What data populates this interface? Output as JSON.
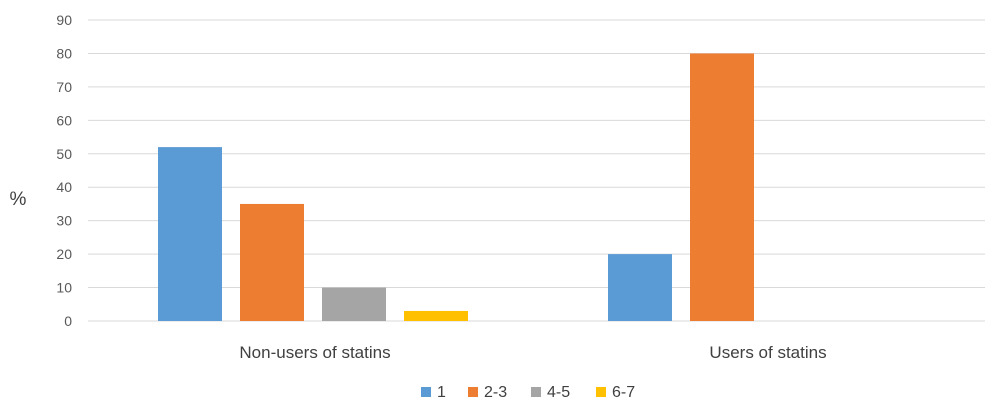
{
  "chart_data": {
    "type": "bar",
    "categories": [
      "Non-users of statins",
      "Users of statins"
    ],
    "series": [
      {
        "name": "1",
        "color": "#5B9BD5",
        "values": [
          52,
          20
        ]
      },
      {
        "name": "2-3",
        "color": "#ED7D31",
        "values": [
          35,
          80
        ]
      },
      {
        "name": "4-5",
        "color": "#A5A5A5",
        "values": [
          10,
          0
        ]
      },
      {
        "name": "6-7",
        "color": "#FFC000",
        "values": [
          3,
          0
        ]
      }
    ],
    "yticks": [
      "0",
      "10",
      "20",
      "30",
      "40",
      "50",
      "60",
      "70",
      "80",
      "90"
    ],
    "ylim": [
      0,
      90
    ],
    "ylabel": "%",
    "xlabel": "",
    "title": "",
    "grid": true,
    "legend_position": "bottom",
    "gridline_color": "#D9D9D9"
  }
}
